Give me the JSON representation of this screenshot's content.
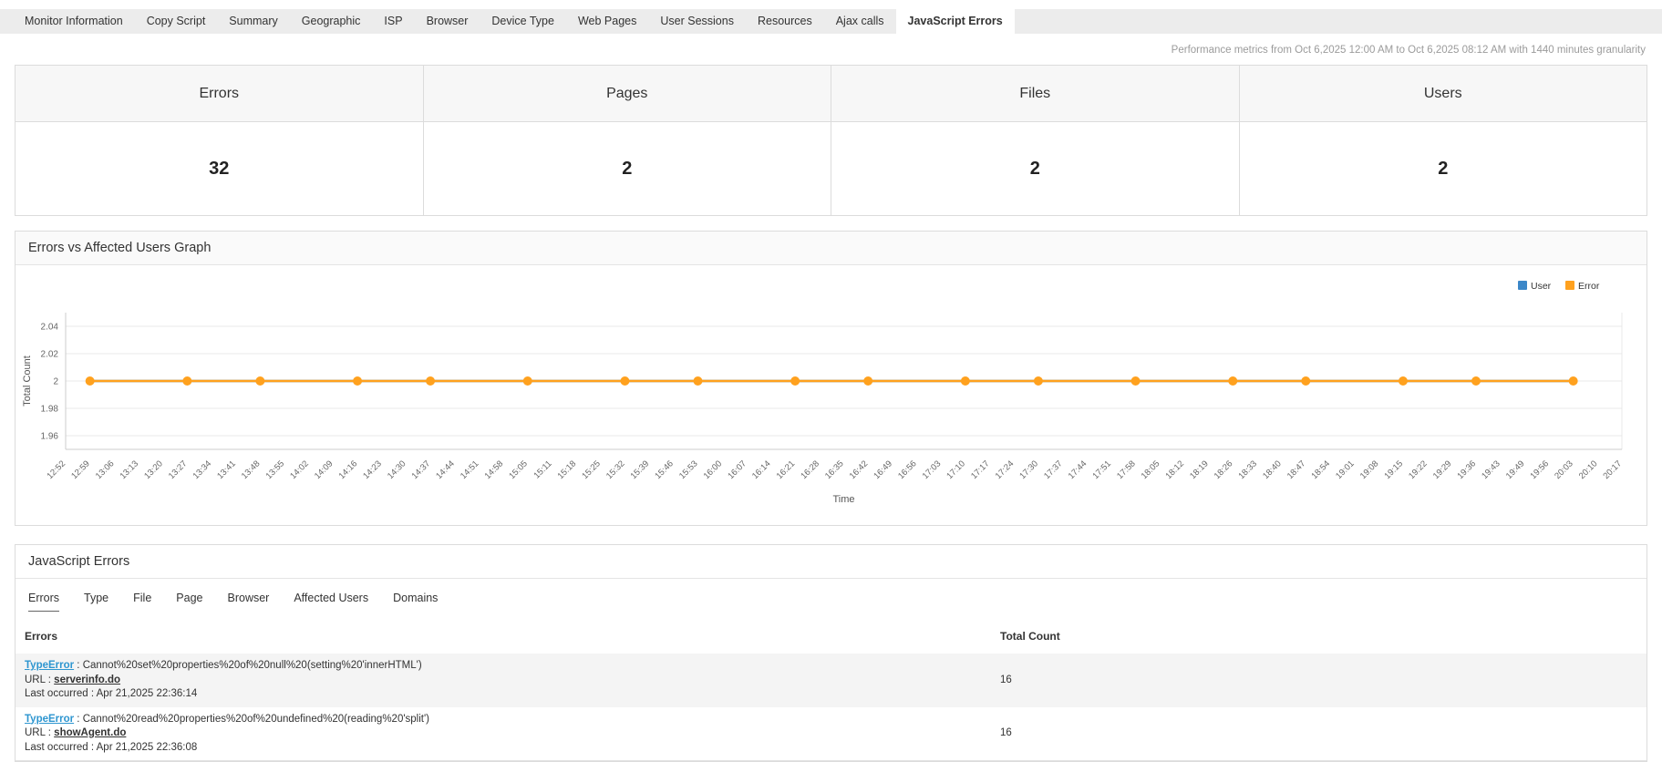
{
  "top_tabs": {
    "items": [
      "Monitor Information",
      "Copy Script",
      "Summary",
      "Geographic",
      "ISP",
      "Browser",
      "Device Type",
      "Web Pages",
      "User Sessions",
      "Resources",
      "Ajax calls",
      "JavaScript Errors"
    ],
    "active": "JavaScript Errors"
  },
  "metrics_note": "Performance metrics from Oct 6,2025 12:00 AM to Oct 6,2025 08:12 AM with 1440 minutes granularity",
  "summary": {
    "cards": [
      {
        "label": "Errors",
        "value": "32"
      },
      {
        "label": "Pages",
        "value": "2"
      },
      {
        "label": "Files",
        "value": "2"
      },
      {
        "label": "Users",
        "value": "2"
      }
    ]
  },
  "graph_panel": {
    "title": "Errors vs Affected Users Graph"
  },
  "chart_data": {
    "type": "line",
    "title": "Errors vs Affected Users Graph",
    "xlabel": "Time",
    "ylabel": "Total Count",
    "ylim": [
      1.95,
      2.05
    ],
    "yticks": [
      2.04,
      2.02,
      2,
      1.98,
      1.96
    ],
    "grid": true,
    "legend_position": "top-right",
    "x": [
      "12:52",
      "12:59",
      "13:06",
      "13:13",
      "13:20",
      "13:27",
      "13:34",
      "13:41",
      "13:48",
      "13:55",
      "14:02",
      "14:09",
      "14:16",
      "14:23",
      "14:30",
      "14:37",
      "14:44",
      "14:51",
      "14:58",
      "15:05",
      "15:11",
      "15:18",
      "15:25",
      "15:32",
      "15:39",
      "15:46",
      "15:53",
      "16:00",
      "16:07",
      "16:14",
      "16:21",
      "16:28",
      "16:35",
      "16:42",
      "16:49",
      "16:56",
      "17:03",
      "17:10",
      "17:17",
      "17:24",
      "17:30",
      "17:37",
      "17:44",
      "17:51",
      "17:58",
      "18:05",
      "18:12",
      "18:19",
      "18:26",
      "18:33",
      "18:40",
      "18:47",
      "18:54",
      "19:01",
      "19:08",
      "19:15",
      "19:22",
      "19:29",
      "19:36",
      "19:43",
      "19:49",
      "19:56",
      "20:03",
      "20:10",
      "20:17"
    ],
    "series": [
      {
        "name": "User",
        "color": "#3b87c8",
        "values": [
          2,
          2,
          2,
          2,
          2,
          2,
          2,
          2,
          2,
          2,
          2,
          2,
          2,
          2,
          2,
          2,
          2,
          2,
          2,
          2,
          2,
          2,
          2,
          2,
          2,
          2,
          2,
          2,
          2,
          2,
          2,
          2,
          2,
          2,
          2,
          2,
          2,
          2,
          2,
          2,
          2,
          2,
          2,
          2,
          2,
          2,
          2,
          2,
          2,
          2,
          2,
          2,
          2,
          2,
          2,
          2,
          2,
          2,
          2,
          2,
          2,
          2,
          2,
          2,
          2
        ]
      },
      {
        "name": "Error",
        "color": "#ffa11e",
        "values": [
          2,
          2,
          2,
          2,
          2,
          2,
          2,
          2,
          2,
          2,
          2,
          2,
          2,
          2,
          2,
          2,
          2,
          2,
          2,
          2,
          2,
          2,
          2,
          2,
          2,
          2,
          2,
          2,
          2,
          2,
          2,
          2,
          2,
          2,
          2,
          2,
          2,
          2,
          2,
          2,
          2,
          2,
          2,
          2,
          2,
          2,
          2,
          2,
          2,
          2,
          2,
          2,
          2,
          2,
          2,
          2,
          2,
          2,
          2,
          2,
          2,
          2,
          2,
          2,
          2
        ]
      }
    ]
  },
  "errors_panel": {
    "title": "JavaScript Errors",
    "tabs": [
      "Errors",
      "Type",
      "File",
      "Page",
      "Browser",
      "Affected Users",
      "Domains"
    ],
    "active_tab": "Errors",
    "table": {
      "columns": [
        "Errors",
        "Total Count"
      ],
      "rows": [
        {
          "type": "TypeError",
          "message": " : Cannot%20set%20properties%20of%20null%20(setting%20'innerHTML')",
          "url_label": "URL : ",
          "url": "serverinfo.do",
          "last_occurred": "Last occurred : Apr 21,2025 22:36:14",
          "total_count": "16"
        },
        {
          "type": "TypeError",
          "message": " : Cannot%20read%20properties%20of%20undefined%20(reading%20'split')",
          "url_label": "URL : ",
          "url": "showAgent.do",
          "last_occurred": "Last occurred : Apr 21,2025 22:36:08",
          "total_count": "16"
        }
      ]
    }
  }
}
